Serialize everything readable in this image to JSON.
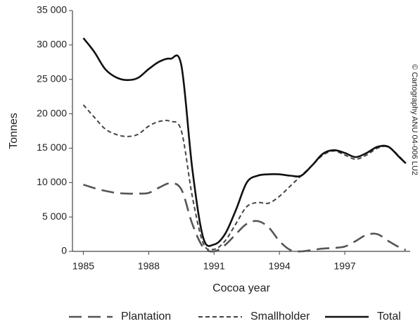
{
  "chart_data": {
    "type": "line",
    "y_label": "Tonnes",
    "x_label": "Cocoa year",
    "annotation": "© Cartography ANU 04-006 LU2",
    "x": [
      1985,
      1985.5,
      1986,
      1986.5,
      1987,
      1987.5,
      1988,
      1988.5,
      1989,
      1989.5,
      1990,
      1990.5,
      1991,
      1991.5,
      1992,
      1992.5,
      1993,
      1993.5,
      1994,
      1994.5,
      1995,
      1995.5,
      1996,
      1996.5,
      1997,
      1997.5,
      1998,
      1998.5,
      1999,
      1999.5,
      1999.8
    ],
    "series": [
      {
        "name": "Plantation",
        "color": "#555555",
        "dash": "long",
        "values": [
          9700,
          9200,
          8800,
          8500,
          8400,
          8400,
          8500,
          9300,
          9900,
          9000,
          4000,
          600,
          0,
          900,
          2500,
          4000,
          4400,
          3500,
          1500,
          200,
          0,
          200,
          400,
          500,
          700,
          1500,
          2400,
          2500,
          1500,
          600,
          200
        ]
      },
      {
        "name": "Smallholder",
        "color": "#444444",
        "dash": "short",
        "values": [
          21300,
          19500,
          17800,
          17000,
          16700,
          17000,
          18200,
          18900,
          18900,
          17500,
          8000,
          1200,
          300,
          1500,
          4000,
          6500,
          7100,
          7000,
          8000,
          9500,
          11000,
          12500,
          14000,
          14600,
          14000,
          13400,
          14000,
          15000,
          15200,
          13800,
          12800
        ]
      },
      {
        "name": "Total",
        "color": "#111111",
        "dash": "solid",
        "values": [
          31000,
          29000,
          26500,
          25300,
          24900,
          25200,
          26500,
          27600,
          28000,
          27000,
          12000,
          2000,
          1000,
          2500,
          6000,
          10000,
          11000,
          11200,
          11200,
          11000,
          11000,
          12500,
          14200,
          14700,
          14300,
          13700,
          14300,
          15200,
          15200,
          13700,
          12800
        ]
      }
    ],
    "xlim": [
      1984.5,
      2000
    ],
    "xticks": [
      1985,
      1988,
      1991,
      1994,
      1997
    ],
    "ylim": [
      0,
      35000
    ],
    "yticks": [
      0,
      {
        "value": 5000,
        "label": "5 000"
      },
      {
        "value": 10000,
        "label": "10 000"
      },
      {
        "value": 15000,
        "label": "15 000"
      },
      {
        "value": 20000,
        "label": "20 000"
      },
      {
        "value": 25000,
        "label": "25 000"
      },
      {
        "value": 30000,
        "label": "30 000"
      },
      {
        "value": 35000,
        "label": "35 000"
      }
    ],
    "grid": false,
    "legend": "bottom"
  }
}
